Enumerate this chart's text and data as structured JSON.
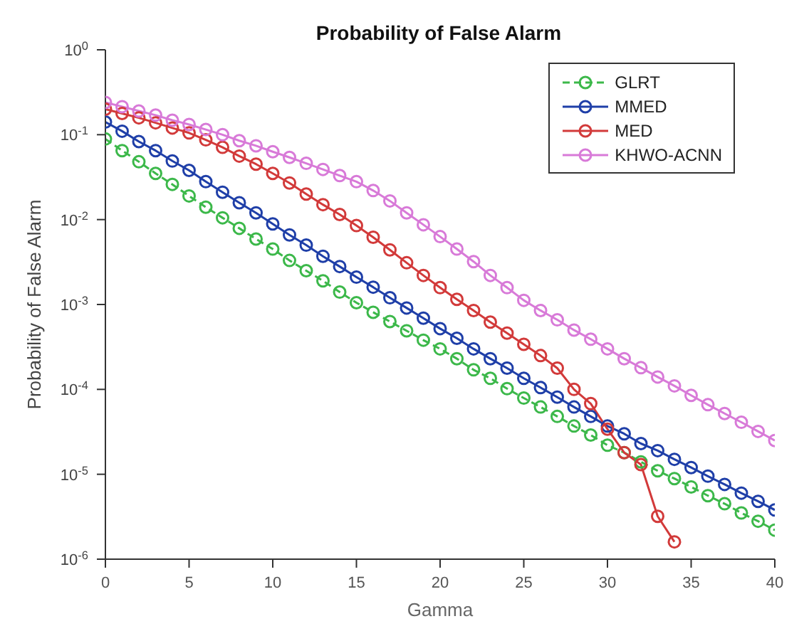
{
  "chart_data": {
    "type": "line",
    "title": "Probability of False Alarm",
    "xlabel": "Gamma",
    "ylabel": "Probability of False Alarm",
    "x": [
      0,
      1,
      2,
      3,
      4,
      5,
      6,
      7,
      8,
      9,
      10,
      11,
      12,
      13,
      14,
      15,
      16,
      17,
      18,
      19,
      20,
      21,
      22,
      23,
      24,
      25,
      26,
      27,
      28,
      29,
      30,
      31,
      32,
      33,
      34,
      35,
      36,
      37,
      38,
      39,
      40
    ],
    "series": [
      {
        "name": "GLRT",
        "color": "#3cb84a",
        "line_style": "dashed",
        "values": [
          0.089,
          0.065,
          0.048,
          0.035,
          0.026,
          0.019,
          0.014,
          0.0105,
          0.0079,
          0.0059,
          0.0045,
          0.0033,
          0.0025,
          0.0019,
          0.0014,
          0.00105,
          0.00081,
          0.00063,
          0.00049,
          0.00038,
          0.0003,
          0.00023,
          0.00017,
          0.000135,
          0.000102,
          7.9e-05,
          6.2e-05,
          4.8e-05,
          3.7e-05,
          2.9e-05,
          2.2e-05,
          1.8e-05,
          1.4e-05,
          1.1e-05,
          8.9e-06,
          7.1e-06,
          5.6e-06,
          4.5e-06,
          3.5e-06,
          2.8e-06,
          2.2e-06
        ]
      },
      {
        "name": "MMED",
        "color": "#1f3fa8",
        "values": [
          0.141,
          0.11,
          0.083,
          0.065,
          0.049,
          0.038,
          0.028,
          0.021,
          0.0158,
          0.012,
          0.0089,
          0.0066,
          0.005,
          0.0037,
          0.0028,
          0.0021,
          0.0016,
          0.0012,
          0.00091,
          0.00069,
          0.00052,
          0.0004,
          0.0003,
          0.00023,
          0.000178,
          0.000135,
          0.000105,
          8.1e-05,
          6.2e-05,
          4.8e-05,
          3.7e-05,
          3e-05,
          2.3e-05,
          1.9e-05,
          1.5e-05,
          1.2e-05,
          9.5e-06,
          7.6e-06,
          6e-06,
          4.8e-06,
          3.8e-06
        ]
      },
      {
        "name": "MED",
        "color": "#d23a3a",
        "values": [
          0.2,
          0.178,
          0.158,
          0.138,
          0.12,
          0.105,
          0.087,
          0.071,
          0.056,
          0.045,
          0.035,
          0.027,
          0.02,
          0.015,
          0.0115,
          0.0085,
          0.0062,
          0.0044,
          0.0031,
          0.0022,
          0.00158,
          0.00115,
          0.00085,
          0.00062,
          0.00046,
          0.00034,
          0.00025,
          0.000178,
          0.0001,
          6.8e-05,
          3.4e-05,
          1.8e-05,
          1.3e-05,
          3.2e-06,
          1.6e-06,
          null,
          null,
          null,
          null,
          null,
          null
        ]
      },
      {
        "name": "KHWO-ACNN",
        "color": "#d87ad8",
        "values": [
          0.24,
          0.214,
          0.19,
          0.17,
          0.148,
          0.132,
          0.115,
          0.1,
          0.085,
          0.074,
          0.063,
          0.054,
          0.046,
          0.039,
          0.033,
          0.028,
          0.022,
          0.0166,
          0.012,
          0.0087,
          0.0063,
          0.0045,
          0.0032,
          0.0022,
          0.00158,
          0.00112,
          0.00085,
          0.00066,
          0.0005,
          0.00039,
          0.0003,
          0.00023,
          0.00018,
          0.00014,
          0.00011,
          8.5e-05,
          6.6e-05,
          5.2e-05,
          4.1e-05,
          3.2e-05,
          2.5e-05
        ]
      }
    ],
    "xlim": [
      0,
      40
    ],
    "xticks": [
      0,
      5,
      10,
      15,
      20,
      25,
      30,
      35,
      40
    ],
    "ylim": [
      1e-06,
      1
    ],
    "log": true,
    "yticks": [
      {
        "value": 1e-06,
        "label": "10$^{-6}$"
      },
      {
        "value": 1e-05,
        "label": "10$^{-5}$"
      },
      {
        "value": 0.0001,
        "label": "10$^{-4}$"
      },
      {
        "value": 0.001,
        "label": "10$^{-3}$"
      },
      {
        "value": 0.01,
        "label": "10$^{-2}$"
      },
      {
        "value": 0.1,
        "label": "10$^{-1}$"
      },
      {
        "value": 1,
        "label": "10$^{0}$"
      }
    ],
    "grid": false,
    "legend": "top right",
    "marker": "circle",
    "line_style": "solid"
  }
}
